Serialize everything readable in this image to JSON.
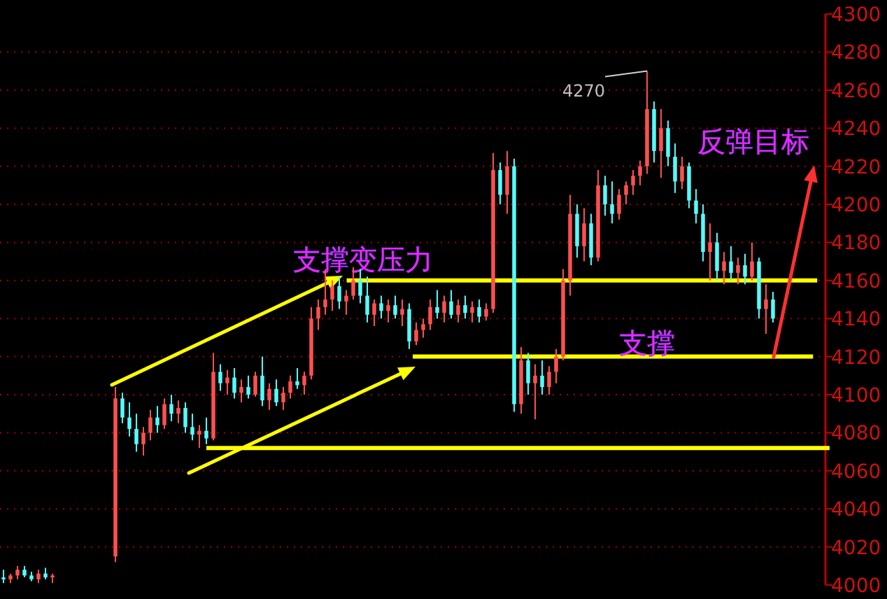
{
  "chart_data": {
    "type": "candlestick",
    "categories": [
      null,
      null,
      null,
      null,
      null,
      null,
      null,
      null,
      null,
      null,
      null,
      null,
      null,
      null,
      null,
      null,
      null,
      null,
      null,
      null,
      null,
      null,
      null,
      null,
      null,
      null,
      null,
      null,
      null,
      null,
      null,
      null,
      null,
      null,
      null,
      null,
      null,
      null,
      null,
      null,
      null,
      null,
      null,
      null,
      null,
      null,
      null,
      null,
      null,
      null,
      null,
      null,
      null,
      null,
      null,
      null,
      null,
      null,
      null,
      null,
      null,
      null,
      null,
      null,
      null,
      null,
      null,
      null,
      null,
      null,
      null,
      null,
      null,
      null,
      null,
      null,
      null,
      null,
      null,
      null,
      null,
      null,
      null,
      null,
      null,
      null,
      null,
      null,
      null,
      null,
      null,
      null,
      null,
      null,
      null,
      null,
      null,
      null,
      null,
      null,
      null,
      null,
      null,
      null,
      null,
      null,
      null,
      null,
      null,
      null,
      null
    ],
    "ohlc": [
      [
        4004,
        4008,
        4001,
        4003
      ],
      [
        4003,
        4006,
        4001,
        4005
      ],
      [
        4005,
        4010,
        4003,
        4008
      ],
      [
        4008,
        4010,
        4004,
        4005
      ],
      [
        4005,
        4007,
        4002,
        4003
      ],
      [
        4003,
        4008,
        4001,
        4006
      ],
      [
        4006,
        4009,
        4003,
        4004
      ],
      [
        4004,
        4006,
        4001,
        4005
      ],
      null,
      null,
      null,
      null,
      null,
      null,
      null,
      null,
      [
        4015,
        4104,
        4012,
        4098
      ],
      [
        4098,
        4101,
        4085,
        4088
      ],
      [
        4088,
        4096,
        4078,
        4082
      ],
      [
        4082,
        4090,
        4070,
        4074
      ],
      [
        4074,
        4083,
        4068,
        4080
      ],
      [
        4080,
        4092,
        4076,
        4088
      ],
      [
        4088,
        4094,
        4080,
        4084
      ],
      [
        4084,
        4098,
        4082,
        4095
      ],
      [
        4095,
        4100,
        4086,
        4090
      ],
      [
        4090,
        4097,
        4085,
        4093
      ],
      [
        4093,
        4096,
        4080,
        4083
      ],
      [
        4083,
        4090,
        4076,
        4079
      ],
      [
        4079,
        4084,
        4072,
        4081
      ],
      [
        4081,
        4088,
        4074,
        4077
      ],
      [
        4077,
        4122,
        4076,
        4112
      ],
      [
        4112,
        4116,
        4102,
        4106
      ],
      [
        4106,
        4113,
        4100,
        4109
      ],
      [
        4109,
        4114,
        4098,
        4101
      ],
      [
        4101,
        4108,
        4096,
        4104
      ],
      [
        4104,
        4110,
        4098,
        4100
      ],
      [
        4100,
        4112,
        4099,
        4110
      ],
      [
        4110,
        4120,
        4094,
        4097
      ],
      [
        4097,
        4106,
        4092,
        4103
      ],
      [
        4103,
        4108,
        4094,
        4096
      ],
      [
        4096,
        4104,
        4092,
        4101
      ],
      [
        4101,
        4110,
        4098,
        4107
      ],
      [
        4107,
        4114,
        4103,
        4105
      ],
      [
        4105,
        4112,
        4100,
        4110
      ],
      [
        4110,
        4146,
        4108,
        4140
      ],
      [
        4140,
        4150,
        4134,
        4146
      ],
      [
        4146,
        4166,
        4142,
        4150
      ],
      [
        4150,
        4160,
        4144,
        4157
      ],
      [
        4157,
        4162,
        4145,
        4149
      ],
      [
        4149,
        4155,
        4142,
        4152
      ],
      [
        4152,
        4167,
        4150,
        4160
      ],
      [
        4160,
        4166,
        4148,
        4152
      ],
      [
        4152,
        4162,
        4138,
        4142
      ],
      [
        4142,
        4150,
        4136,
        4148
      ],
      [
        4148,
        4152,
        4140,
        4144
      ],
      [
        4144,
        4150,
        4138,
        4147
      ],
      [
        4147,
        4152,
        4140,
        4142
      ],
      [
        4142,
        4150,
        4136,
        4145
      ],
      [
        4145,
        4148,
        4124,
        4128
      ],
      [
        4128,
        4138,
        4126,
        4134
      ],
      [
        4134,
        4140,
        4130,
        4137
      ],
      [
        4137,
        4150,
        4134,
        4146
      ],
      [
        4146,
        4155,
        4140,
        4143
      ],
      [
        4143,
        4152,
        4138,
        4149
      ],
      [
        4149,
        4155,
        4140,
        4142
      ],
      [
        4142,
        4150,
        4138,
        4147
      ],
      [
        4147,
        4152,
        4140,
        4143
      ],
      [
        4143,
        4149,
        4138,
        4146
      ],
      [
        4146,
        4150,
        4138,
        4141
      ],
      [
        4141,
        4148,
        4139,
        4145
      ],
      [
        4145,
        4227,
        4143,
        4218
      ],
      [
        4218,
        4222,
        4200,
        4205
      ],
      [
        4205,
        4228,
        4195,
        4220
      ],
      [
        4220,
        4224,
        4091,
        4095
      ],
      [
        4095,
        4125,
        4090,
        4118
      ],
      [
        4118,
        4122,
        4100,
        4106
      ],
      [
        4106,
        4116,
        4087,
        4110
      ],
      [
        4110,
        4118,
        4100,
        4104
      ],
      [
        4104,
        4115,
        4100,
        4112
      ],
      [
        4112,
        4124,
        4106,
        4120
      ],
      [
        4120,
        4166,
        4118,
        4160
      ],
      [
        4160,
        4205,
        4152,
        4195
      ],
      [
        4195,
        4200,
        4172,
        4178
      ],
      [
        4178,
        4198,
        4170,
        4190
      ],
      [
        4190,
        4195,
        4168,
        4172
      ],
      [
        4172,
        4218,
        4170,
        4210
      ],
      [
        4210,
        4215,
        4194,
        4200
      ],
      [
        4200,
        4212,
        4190,
        4195
      ],
      [
        4195,
        4208,
        4192,
        4205
      ],
      [
        4205,
        4212,
        4200,
        4210
      ],
      [
        4210,
        4218,
        4205,
        4215
      ],
      [
        4215,
        4223,
        4210,
        4220
      ],
      [
        4220,
        4270,
        4216,
        4250
      ],
      [
        4250,
        4254,
        4222,
        4228
      ],
      [
        4228,
        4250,
        4214,
        4240
      ],
      [
        4240,
        4244,
        4220,
        4225
      ],
      [
        4225,
        4232,
        4206,
        4212
      ],
      [
        4212,
        4225,
        4208,
        4220
      ],
      [
        4220,
        4222,
        4198,
        4202
      ],
      [
        4202,
        4208,
        4190,
        4195
      ],
      [
        4195,
        4200,
        4170,
        4175
      ],
      [
        4175,
        4190,
        4160,
        4180
      ],
      [
        4180,
        4185,
        4160,
        4165
      ],
      [
        4165,
        4175,
        4158,
        4170
      ],
      [
        4170,
        4178,
        4160,
        4164
      ],
      [
        4164,
        4172,
        4158,
        4168
      ],
      [
        4168,
        4174,
        4158,
        4162
      ],
      [
        4162,
        4180,
        4160,
        4170
      ],
      [
        4170,
        4172,
        4140,
        4145
      ],
      [
        4145,
        4158,
        4132,
        4150
      ],
      [
        4150,
        4154,
        4138,
        4140
      ]
    ],
    "ylim": [
      4000,
      4300
    ],
    "yticks": [
      4000,
      4020,
      4040,
      4060,
      4080,
      4100,
      4120,
      4140,
      4160,
      4180,
      4200,
      4220,
      4240,
      4260,
      4280,
      4300
    ],
    "grid": "y",
    "tick_labels": "y",
    "ref_lines": [
      {
        "axis": "y",
        "value": 4160,
        "label": "支撑变压力",
        "color": "#ffff00"
      },
      {
        "axis": "y",
        "value": 4120,
        "label": "支撑",
        "color": "#ffff00"
      },
      {
        "axis": "y",
        "value": 4072,
        "color": "#ffff00"
      }
    ],
    "annotations": [
      "4270",
      "反弹目标"
    ]
  }
}
